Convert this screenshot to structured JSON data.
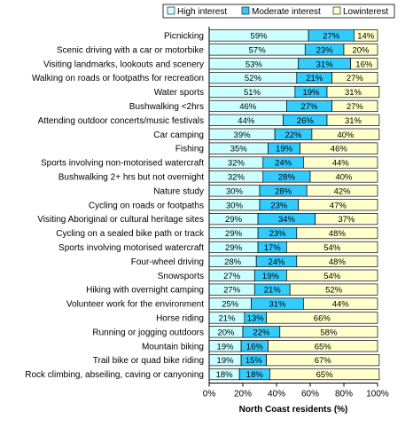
{
  "chart_data": {
    "type": "bar",
    "orientation": "horizontal",
    "stacked": true,
    "title": "",
    "xlabel": "North Coast residents (%)",
    "ylabel": "",
    "xlim": [
      0,
      100
    ],
    "xticks": [
      "0%",
      "20%",
      "40%",
      "60%",
      "80%",
      "100%"
    ],
    "legend_position": "top",
    "colors": {
      "High interest": "#ccffff",
      "Moderate interest": "#33ccff",
      "Lowinterest": "#ffffcc"
    },
    "categories": [
      "Picnicking",
      "Scenic driving with a car or motorbike",
      "Visiting landmarks, lookouts and scenery",
      "Walking on roads or footpaths for recreation",
      "Water sports",
      "Bushwalking <2hrs",
      "Attending outdoor concerts/music festivals",
      "Car camping",
      "Fishing",
      "Sports involving non-motorised watercraft",
      "Bushwalking 2+ hrs but not overnight",
      "Nature study",
      "Cycling on roads or footpaths",
      "Visiting Aboriginal or cultural heritage sites",
      "Cycling on a sealed bike path or track",
      "Sports involving motorised watercraft",
      "Four-wheel driving",
      "Snowsports",
      "Hiking with overnight camping",
      "Volunteer work for the environment",
      "Horse riding",
      "Running or jogging outdoors",
      "Mountain biking",
      "Trail bike or quad bike riding",
      "Rock climbing, abseiling, caving or canyoning"
    ],
    "series": [
      {
        "name": "High interest",
        "values": [
          59,
          57,
          53,
          52,
          51,
          46,
          44,
          39,
          35,
          32,
          32,
          30,
          30,
          29,
          29,
          29,
          28,
          27,
          27,
          25,
          21,
          20,
          19,
          19,
          18
        ]
      },
      {
        "name": "Moderate interest",
        "values": [
          27,
          23,
          31,
          21,
          19,
          27,
          26,
          22,
          19,
          24,
          28,
          28,
          23,
          34,
          23,
          17,
          24,
          19,
          21,
          31,
          13,
          22,
          16,
          15,
          18
        ]
      },
      {
        "name": "Lowinterest",
        "values": [
          14,
          20,
          16,
          27,
          31,
          27,
          31,
          40,
          46,
          44,
          40,
          42,
          47,
          37,
          48,
          54,
          48,
          54,
          52,
          44,
          66,
          58,
          65,
          67,
          65
        ]
      }
    ],
    "data_labels": [
      [
        "59%",
        "27%",
        "14%"
      ],
      [
        "57%",
        "23%",
        "20%"
      ],
      [
        "53%",
        "31%",
        "16%"
      ],
      [
        "52%",
        "21%",
        "27%"
      ],
      [
        "51%",
        "19%",
        "31%"
      ],
      [
        "46%",
        "27%",
        "27%"
      ],
      [
        "44%",
        "26%",
        "31%"
      ],
      [
        "39%",
        "22%",
        "40%"
      ],
      [
        "35%",
        "19%",
        "46%"
      ],
      [
        "32%",
        "24%",
        "44%"
      ],
      [
        "32%",
        "28%",
        "40%"
      ],
      [
        "30%",
        "28%",
        "42%"
      ],
      [
        "30%",
        "23%",
        "47%"
      ],
      [
        "29%",
        "34%",
        "37%"
      ],
      [
        "29%",
        "23%",
        "48%"
      ],
      [
        "29%",
        "17%",
        "54%"
      ],
      [
        "28%",
        "24%",
        "48%"
      ],
      [
        "27%",
        "19%",
        "54%"
      ],
      [
        "27%",
        "21%",
        "52%"
      ],
      [
        "25%",
        "31%",
        "44%"
      ],
      [
        "21%",
        "13%",
        "66%"
      ],
      [
        "20%",
        "22%",
        "58%"
      ],
      [
        "19%",
        "16%",
        "65%"
      ],
      [
        "19%",
        "15%",
        "67%"
      ],
      [
        "18%",
        "18%",
        "65%"
      ]
    ]
  }
}
